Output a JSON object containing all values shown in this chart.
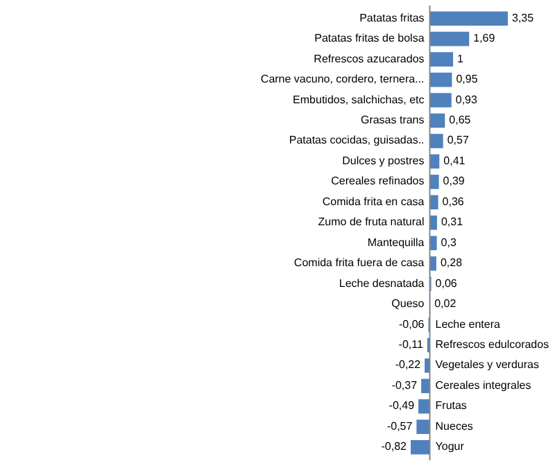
{
  "chart_data": {
    "type": "bar",
    "orientation": "horizontal",
    "color": "#4f81bd",
    "categories": [
      "Patatas fritas",
      "Patatas fritas de bolsa",
      "Refrescos azucarados",
      "Carne vacuno, cordero, ternera...",
      "Embutidos, salchichas, etc",
      "Grasas trans",
      "Patatas cocidas, guisadas..",
      "Dulces y postres",
      "Cereales refinados",
      "Comida frita en casa",
      "Zumo de fruta natural",
      "Mantequilla",
      "Comida frita fuera de casa",
      "Leche desnatada",
      "Queso",
      "Leche entera",
      "Refrescos edulcorados",
      "Vegetales y verduras",
      "Cereales integrales",
      "Frutas",
      "Nueces",
      "Yogur"
    ],
    "values": [
      3.35,
      1.69,
      1,
      0.95,
      0.93,
      0.65,
      0.57,
      0.41,
      0.39,
      0.36,
      0.31,
      0.3,
      0.28,
      0.06,
      0.02,
      -0.06,
      -0.11,
      -0.22,
      -0.37,
      -0.49,
      -0.57,
      -0.82
    ],
    "value_labels": [
      "3,35",
      "1,69",
      "1",
      "0,95",
      "0,93",
      "0,65",
      "0,57",
      "0,41",
      "0,39",
      "0,36",
      "0,31",
      "0,3",
      "0,28",
      "0,06",
      "0,02",
      "-0,06",
      "-0,11",
      "-0,22",
      "-0,37",
      "-0,49",
      "-0,57",
      "-0,82"
    ],
    "data_labels": false
  }
}
